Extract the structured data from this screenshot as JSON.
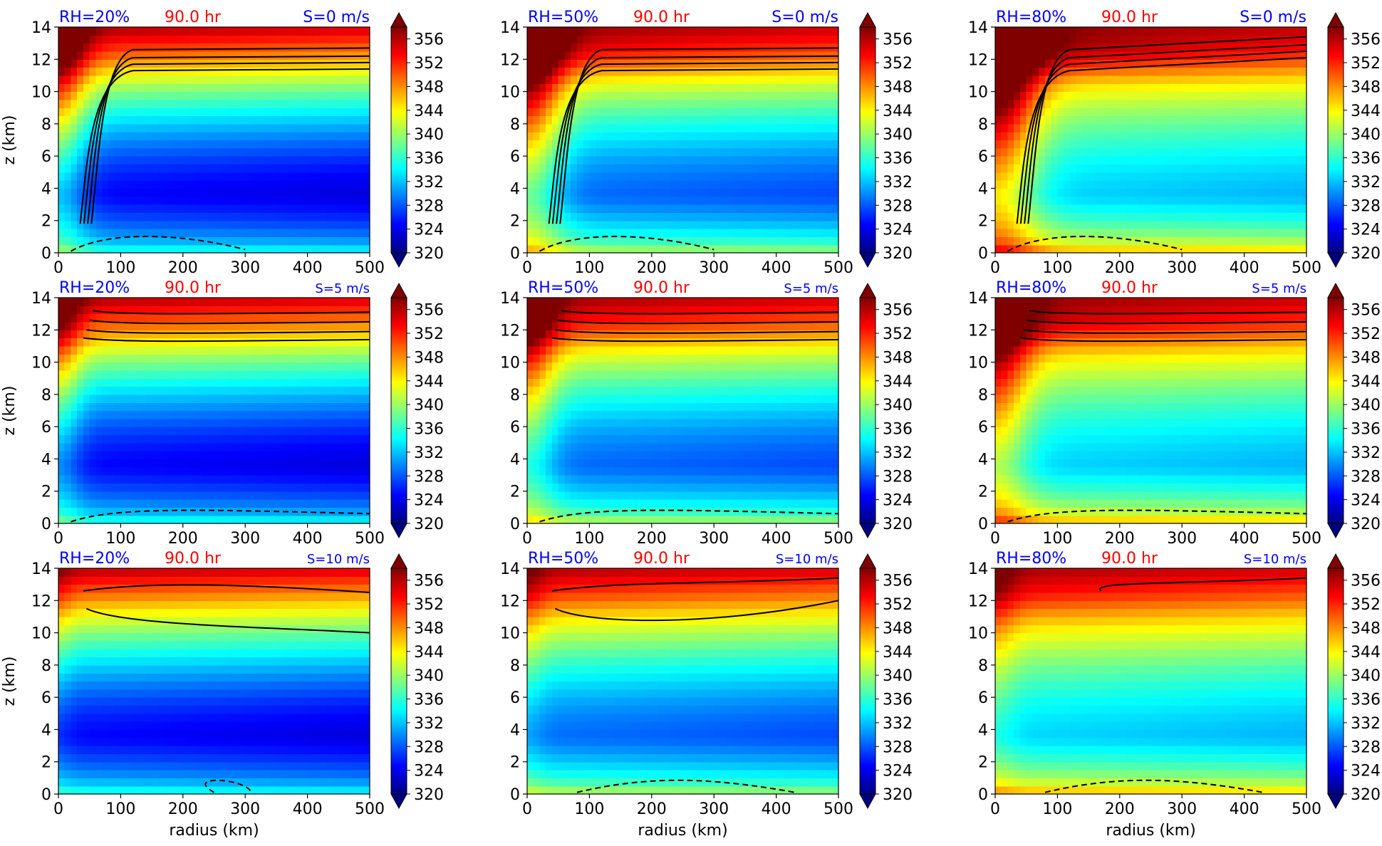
{
  "figure": {
    "rows": 3,
    "cols": 3
  },
  "colors": {
    "rh_label": "#0000ff",
    "time_label": "#ff0000",
    "shear_label": "#0000ff",
    "contour": "#000000"
  },
  "axes": {
    "xlabel": "radius (km)",
    "ylabel": "z (km)",
    "xlim": [
      0,
      500
    ],
    "ylim": [
      0,
      14
    ],
    "xticks": [
      "0",
      "100",
      "200",
      "300",
      "400",
      "500"
    ],
    "yticks": [
      "0",
      "2",
      "4",
      "6",
      "8",
      "10",
      "12",
      "14"
    ],
    "colorbar_ticks": [
      "320",
      "324",
      "328",
      "332",
      "336",
      "340",
      "344",
      "348",
      "352",
      "356"
    ],
    "colorbar_range": [
      320,
      358
    ]
  },
  "chart_data": [
    {
      "type": "heatmap",
      "rh_label": "RH=20%",
      "time_label": "90.0 hr",
      "shear_label": "S=0 m/s",
      "rh": 20,
      "shear": 0,
      "field_range": [
        320,
        358
      ]
    },
    {
      "type": "heatmap",
      "rh_label": "RH=50%",
      "time_label": "90.0 hr",
      "shear_label": "S=0 m/s",
      "rh": 50,
      "shear": 0,
      "field_range": [
        320,
        358
      ]
    },
    {
      "type": "heatmap",
      "rh_label": "RH=80%",
      "time_label": "90.0 hr",
      "shear_label": "S=0 m/s",
      "rh": 80,
      "shear": 0,
      "field_range": [
        320,
        358
      ]
    },
    {
      "type": "heatmap",
      "rh_label": "RH=20%",
      "time_label": "90.0 hr",
      "shear_label": "S=5 m/s",
      "rh": 20,
      "shear": 5,
      "field_range": [
        320,
        358
      ]
    },
    {
      "type": "heatmap",
      "rh_label": "RH=50%",
      "time_label": "90.0 hr",
      "shear_label": "S=5 m/s",
      "rh": 50,
      "shear": 5,
      "field_range": [
        320,
        358
      ]
    },
    {
      "type": "heatmap",
      "rh_label": "RH=80%",
      "time_label": "90.0 hr",
      "shear_label": "S=5 m/s",
      "rh": 80,
      "shear": 5,
      "field_range": [
        320,
        358
      ]
    },
    {
      "type": "heatmap",
      "rh_label": "RH=20%",
      "time_label": "90.0 hr",
      "shear_label": "S=10 m/s",
      "rh": 20,
      "shear": 10,
      "field_range": [
        320,
        358
      ]
    },
    {
      "type": "heatmap",
      "rh_label": "RH=50%",
      "time_label": "90.0 hr",
      "shear_label": "S=10 m/s",
      "rh": 50,
      "shear": 10,
      "field_range": [
        320,
        358
      ]
    },
    {
      "type": "heatmap",
      "rh_label": "RH=80%",
      "time_label": "90.0 hr",
      "shear_label": "S=10 m/s",
      "rh": 80,
      "shear": 10,
      "field_range": [
        320,
        358
      ]
    }
  ]
}
